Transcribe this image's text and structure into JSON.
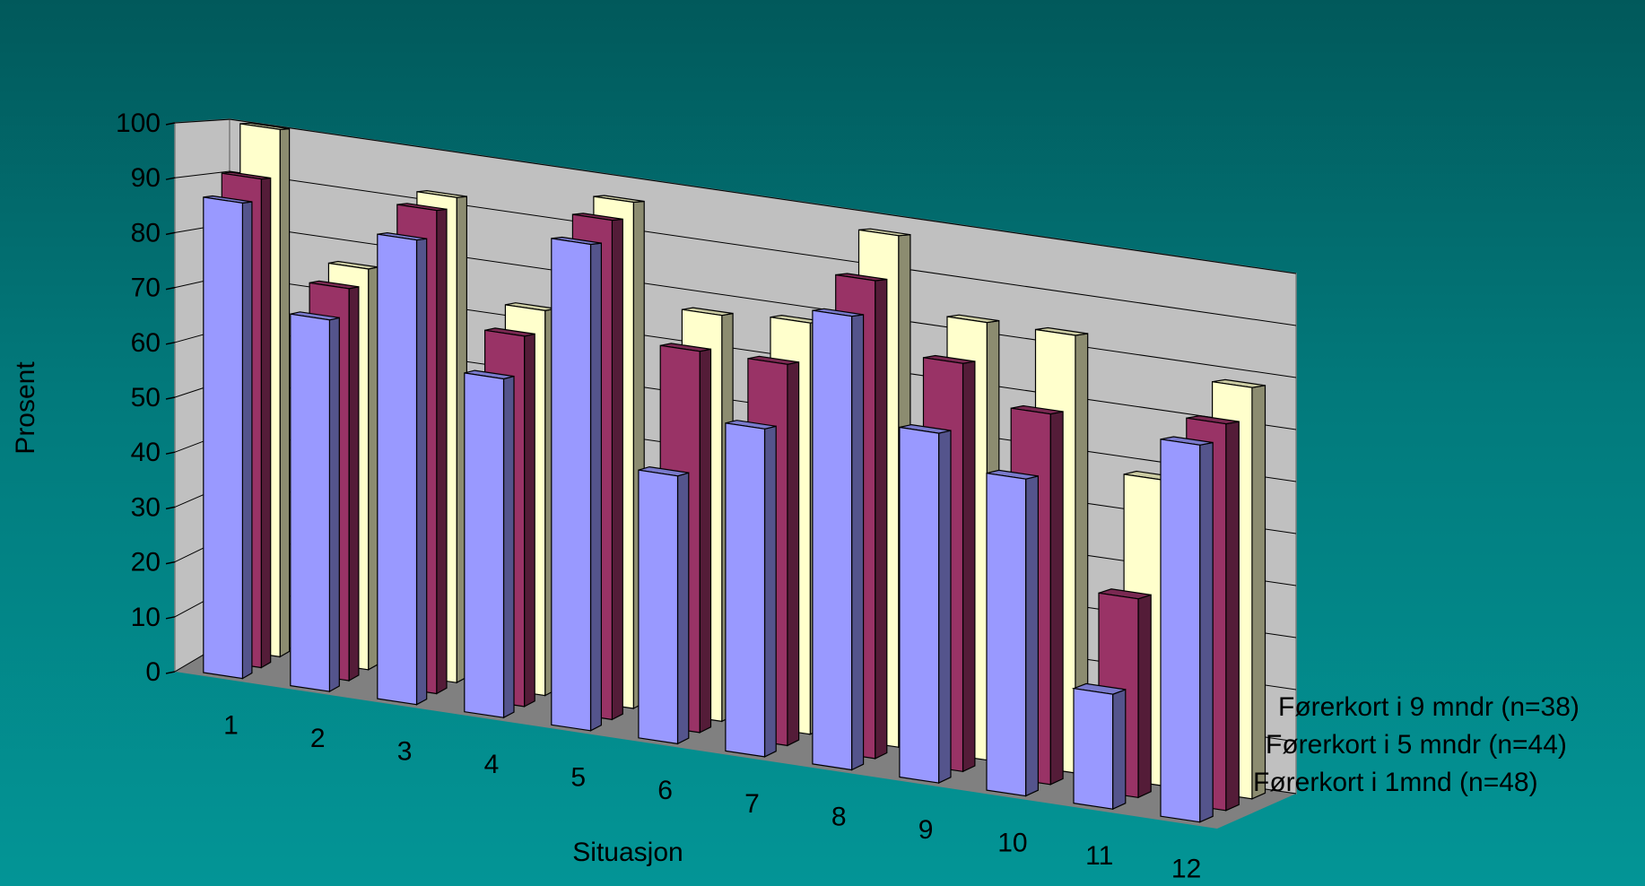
{
  "chart_data": {
    "type": "bar",
    "variant": "3d-clustered-depth",
    "title": "",
    "xlabel": "Situasjon",
    "ylabel": "Prosent",
    "ylim": [
      0,
      100
    ],
    "yticks": [
      "0",
      "10",
      "20",
      "30",
      "40",
      "50",
      "60",
      "70",
      "80",
      "90",
      "100"
    ],
    "categories": [
      "1",
      "2",
      "3",
      "4",
      "5",
      "6",
      "7",
      "8",
      "9",
      "10",
      "11",
      "12"
    ],
    "grid": true,
    "series": [
      {
        "name": "Førerkort i 1mnd (n=48)",
        "color": "#9999ff",
        "values": [
          87,
          68,
          85,
          62,
          89,
          49,
          60,
          83,
          64,
          58,
          21,
          69
        ]
      },
      {
        "name": "Førerkort i 5 mndr (n=44)",
        "color": "#993366",
        "values": [
          91,
          73,
          90,
          69,
          93,
          71,
          71,
          89,
          76,
          69,
          37,
          72
        ]
      },
      {
        "name": "Førerkort i 9 mndr (n=38)",
        "color": "#ffffcc",
        "values": [
          100,
          76,
          92,
          73,
          96,
          77,
          78,
          97,
          83,
          83,
          58,
          78
        ]
      }
    ],
    "legend": [
      "Førerkort i 9 mndr (n=38)",
      "Førerkort i 5 mndr (n=44)",
      "Førerkort i 1mnd (n=48)"
    ]
  }
}
